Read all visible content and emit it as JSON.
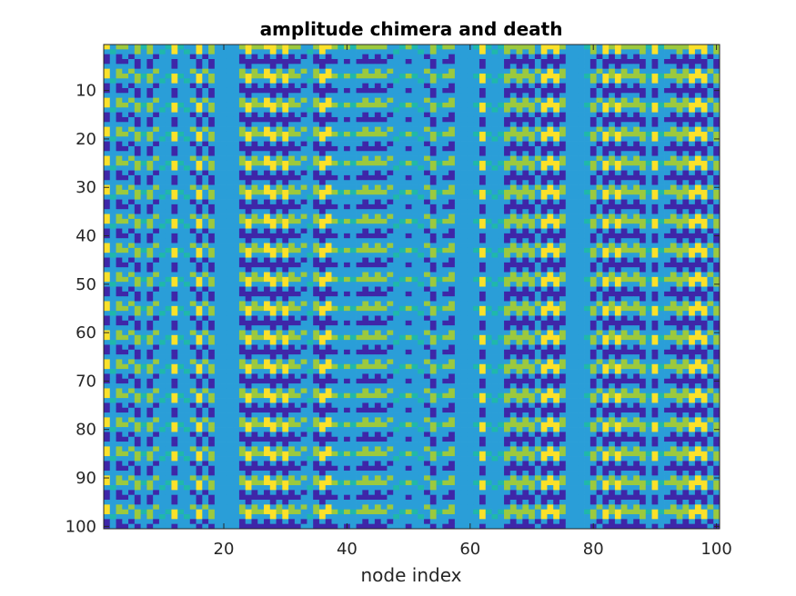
{
  "chart_data": {
    "type": "heatmap",
    "title": "amplitude chimera and death",
    "xlabel": "node index",
    "ylabel": "",
    "xlim": [
      0.5,
      100.5
    ],
    "ylim": [
      100.5,
      0.5
    ],
    "y_reversed": true,
    "nx": 100,
    "ny": 100,
    "xticks": [
      20,
      40,
      60,
      80,
      100
    ],
    "xtick_labels": [
      "20",
      "40",
      "60",
      "80",
      "100"
    ],
    "yticks": [
      10,
      20,
      30,
      40,
      50,
      60,
      70,
      80,
      90,
      100
    ],
    "ytick_labels": [
      "10",
      "20",
      "30",
      "40",
      "50",
      "60",
      "70",
      "80",
      "90",
      "100"
    ],
    "colormap": "parula",
    "colors": {
      "low": "#3e26a8",
      "mid": "#2a9ed8",
      "midhigh": "#9cc93e",
      "high": "#fbe12a",
      "teal": "#1fb8aa"
    },
    "columns": {
      "death_steady": [
        19,
        20,
        21,
        22,
        58,
        59,
        60,
        76,
        77,
        78
      ],
      "oscillating": [
        2,
        3,
        5,
        7,
        9,
        10,
        11,
        12,
        13,
        14,
        15,
        16,
        17,
        18,
        23,
        24,
        25,
        26,
        27,
        28,
        29,
        30,
        31,
        32,
        33,
        34,
        35,
        36,
        37,
        38,
        39,
        40,
        41,
        42,
        43,
        44,
        45,
        46,
        47,
        48,
        49,
        50,
        51,
        52,
        53,
        54,
        55,
        56,
        57,
        61,
        62,
        63,
        64,
        65,
        66,
        67,
        68,
        69,
        70,
        71,
        72,
        73,
        74,
        75,
        79,
        80,
        81,
        82,
        83,
        84,
        85,
        86,
        87,
        88,
        89,
        90,
        91,
        92,
        93,
        94,
        95,
        96,
        97,
        98,
        99,
        100
      ]
    },
    "row_period": 6,
    "grid": false,
    "legend": "none"
  }
}
